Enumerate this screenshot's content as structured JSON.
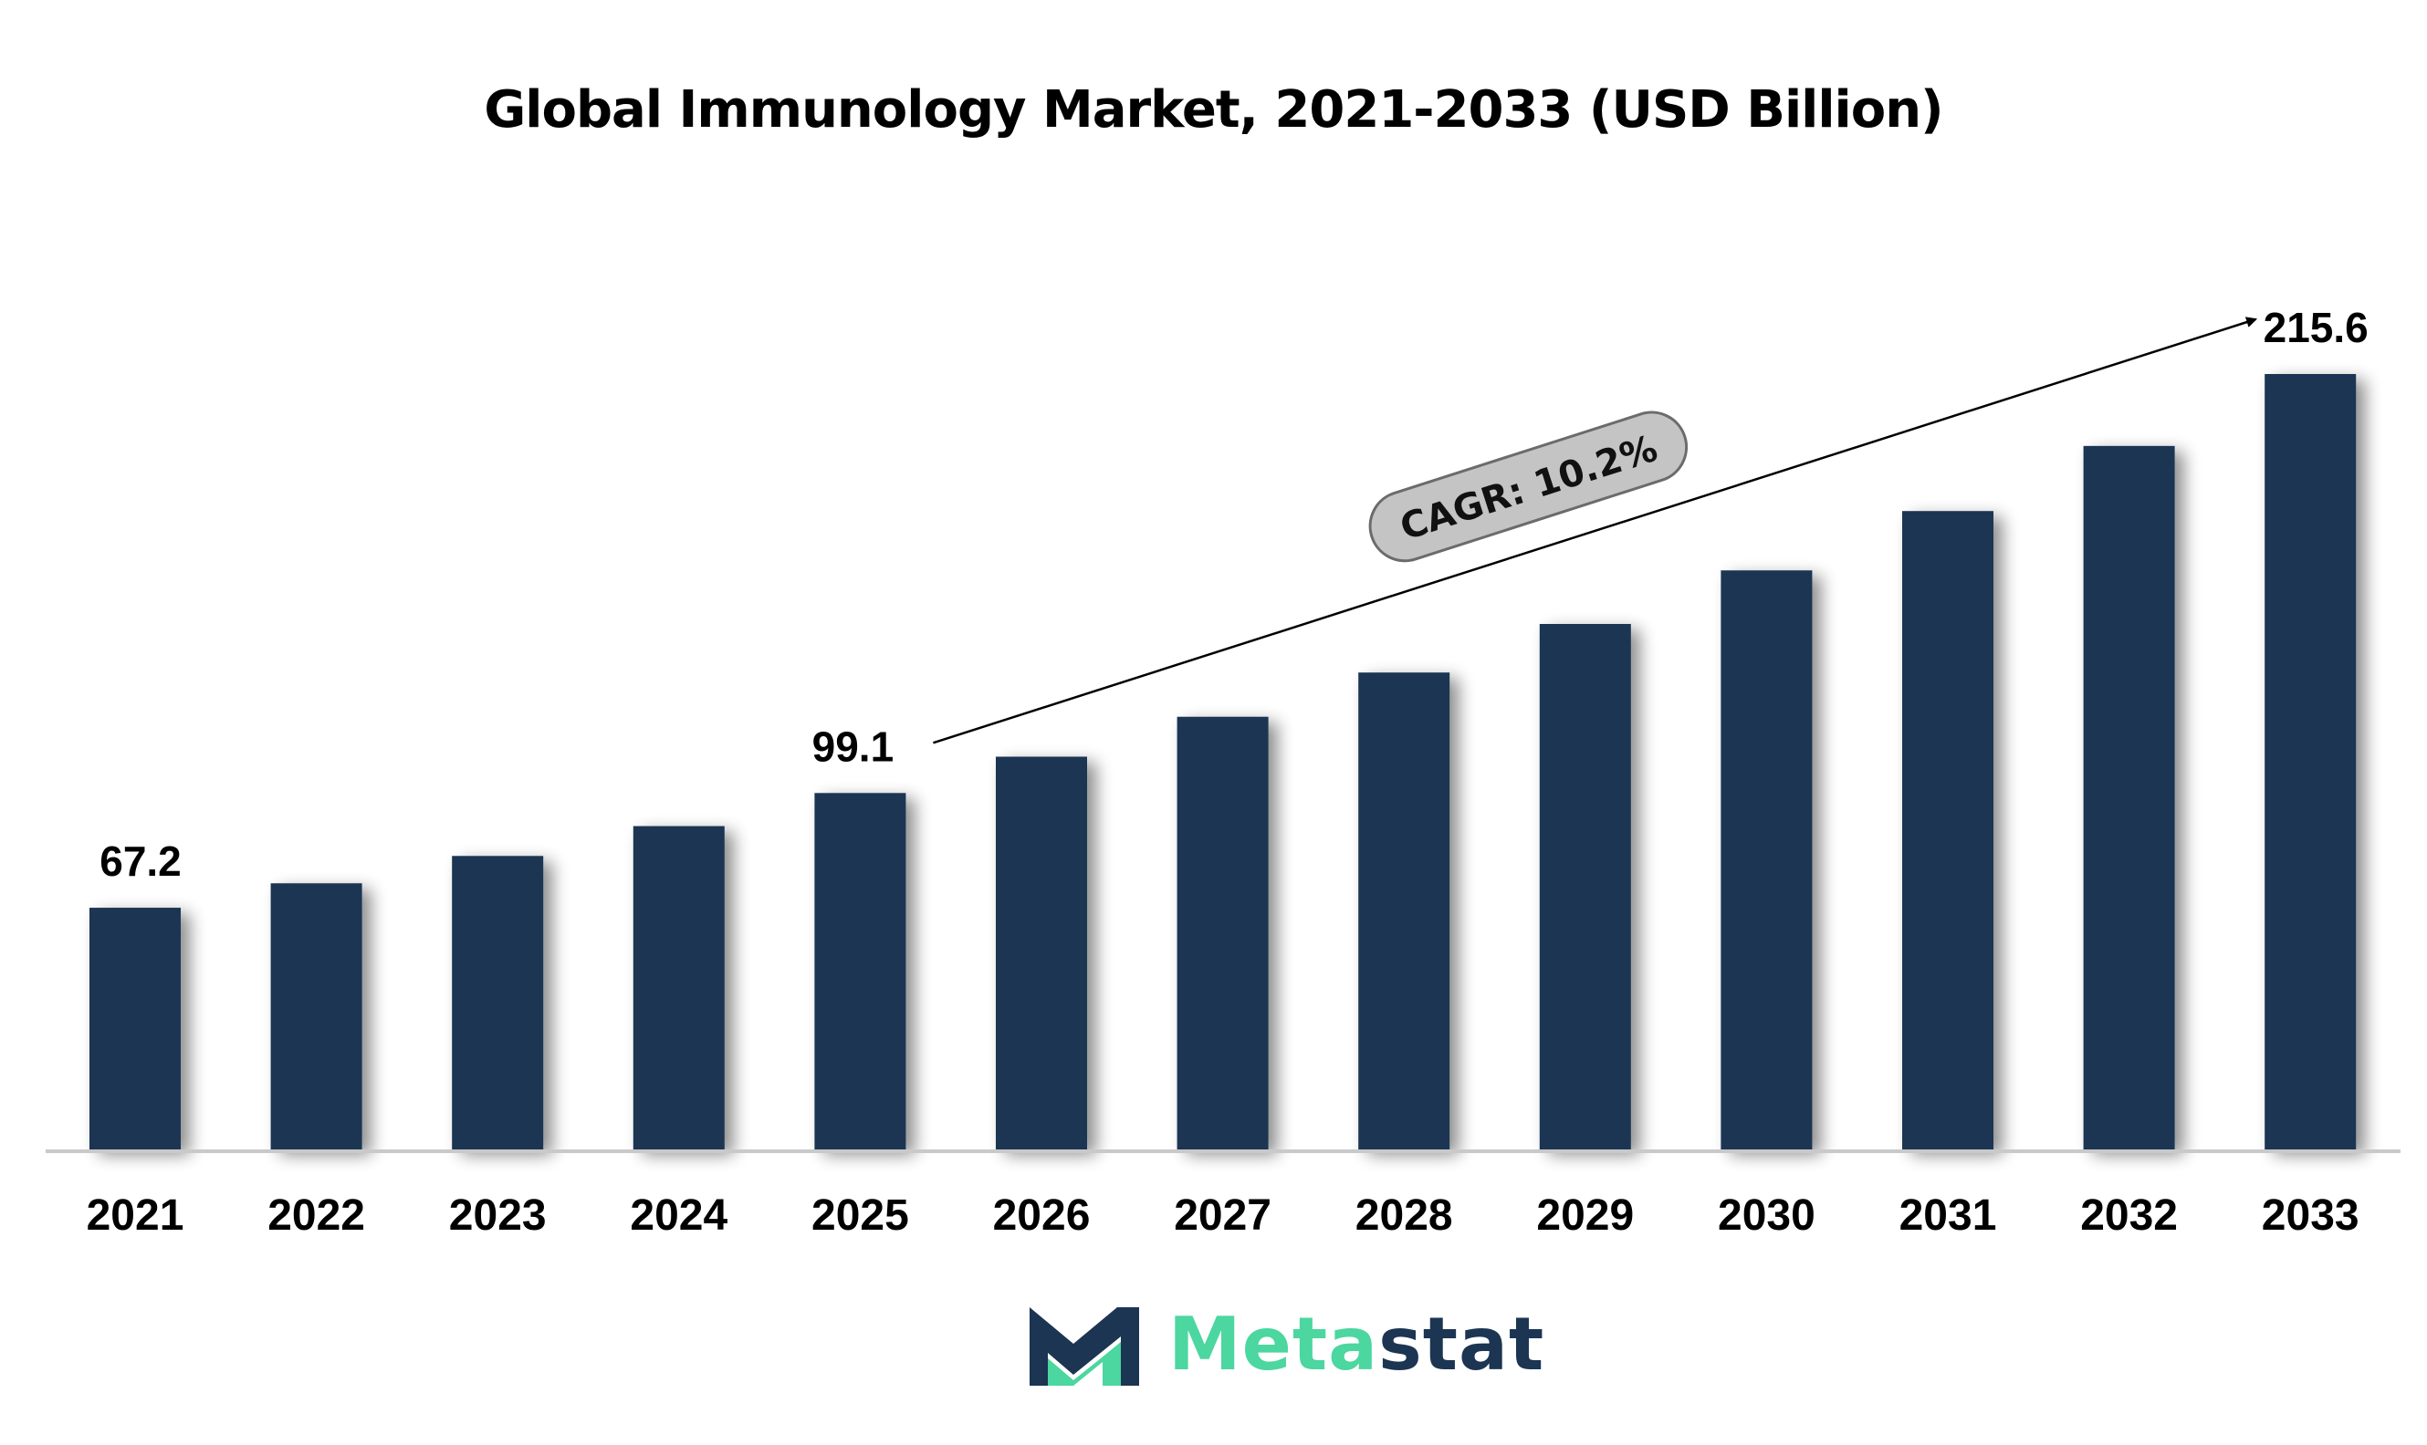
{
  "chart_data": {
    "type": "bar",
    "title": "Global Immunology Market, 2021-2033 (USD Billion)",
    "categories": [
      "2021",
      "2022",
      "2023",
      "2024",
      "2025",
      "2026",
      "2027",
      "2028",
      "2029",
      "2030",
      "2031",
      "2032",
      "2033"
    ],
    "values": [
      67.2,
      74.0,
      81.6,
      89.9,
      99.1,
      109.2,
      120.3,
      132.6,
      146.1,
      161.0,
      177.5,
      195.6,
      215.6
    ],
    "data_labels": [
      {
        "index": 0,
        "text": "67.2"
      },
      {
        "index": 4,
        "text": "99.1"
      },
      {
        "index": 12,
        "text": "215.6"
      }
    ],
    "annotation": {
      "text": "CAGR: 10.2%",
      "from_index": 4,
      "to_index": 12
    },
    "ylim": [
      0,
      240
    ],
    "grid": false,
    "legend": "none",
    "bar_color": "#1b3553"
  },
  "logo": {
    "name_part1": "Meta",
    "name_part2": "stat",
    "color_green": "#4cd6a0",
    "color_navy": "#1b3553"
  }
}
